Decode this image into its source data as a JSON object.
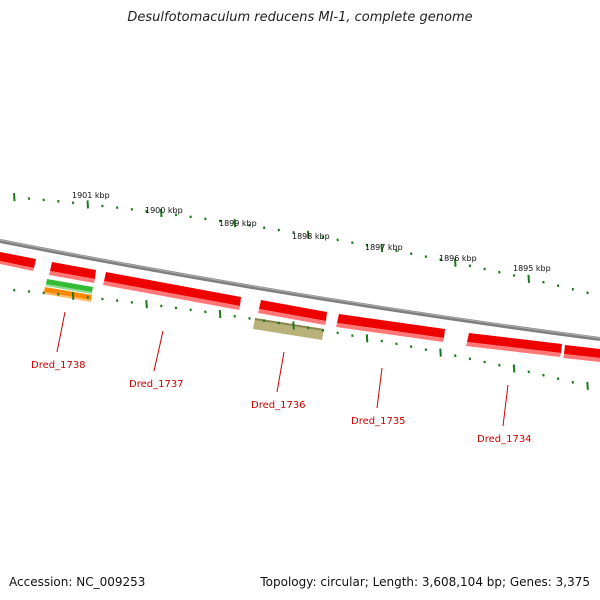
{
  "title": "Desulfotomaculum reducens MI-1, complete genome",
  "footer": {
    "accession": "Accession: NC_009253",
    "summary": "Topology: circular; Length: 3,608,104 bp; Genes: 3,375"
  },
  "scale_labels": [
    "1901 kbp",
    "1900 kbp",
    "1899 kbp",
    "1898 kbp",
    "1897 kbp",
    "1896 kbp",
    "1895 kbp"
  ],
  "genes": [
    {
      "label": "Dred_1738",
      "color": "#ff0000"
    },
    {
      "label": "Dred_1737",
      "color": "#ff0000"
    },
    {
      "label": "Dred_1736",
      "color": "#ff0000"
    },
    {
      "label": "Dred_1735",
      "color": "#ff0000"
    },
    {
      "label": "Dred_1734",
      "color": "#ff0000"
    }
  ],
  "feature_colors": {
    "backbone": "#808080",
    "gene": "#ff0000",
    "scale_tick": "#1a7a1a",
    "label": "#cc0000",
    "feature_green": "#33bb33",
    "feature_orange": "#ff8800",
    "feature_olive": "#b5b070"
  }
}
